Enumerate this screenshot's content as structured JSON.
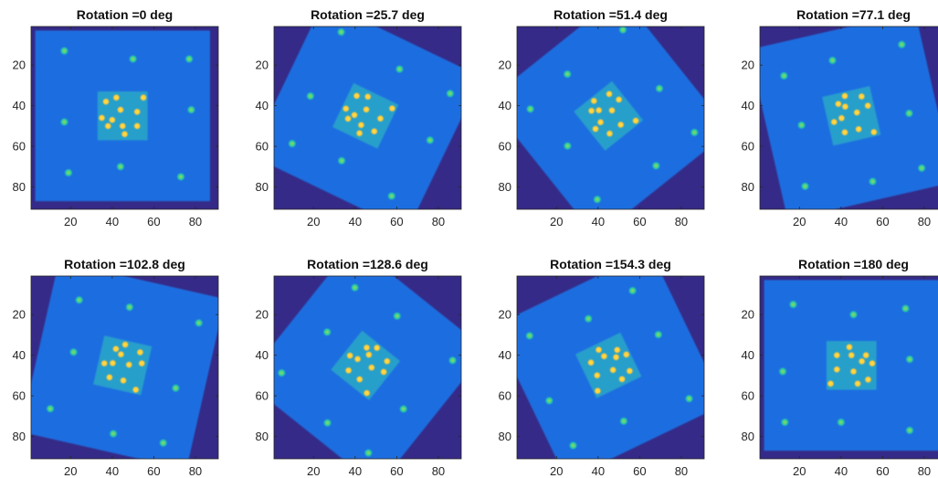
{
  "chart_data": [
    {
      "type": "heatmap",
      "title": "Rotation =0 deg",
      "rotation_deg": 0,
      "colormap": "parula",
      "xlim": [
        1,
        91
      ],
      "ylim": [
        1,
        91
      ],
      "xticks": [
        20,
        40,
        60,
        80
      ],
      "yticks": [
        20,
        40,
        60,
        80
      ],
      "grid": false
    },
    {
      "type": "heatmap",
      "title": "Rotation =25.7 deg",
      "rotation_deg": 25.7,
      "colormap": "parula",
      "xlim": [
        1,
        91
      ],
      "ylim": [
        1,
        91
      ],
      "xticks": [
        20,
        40,
        60,
        80
      ],
      "yticks": [
        20,
        40,
        60,
        80
      ],
      "grid": false
    },
    {
      "type": "heatmap",
      "title": "Rotation =51.4 deg",
      "rotation_deg": 51.4,
      "colormap": "parula",
      "xlim": [
        1,
        91
      ],
      "ylim": [
        1,
        91
      ],
      "xticks": [
        20,
        40,
        60,
        80
      ],
      "yticks": [
        20,
        40,
        60,
        80
      ],
      "grid": false
    },
    {
      "type": "heatmap",
      "title": "Rotation =77.1 deg",
      "rotation_deg": 77.1,
      "colormap": "parula",
      "xlim": [
        1,
        91
      ],
      "ylim": [
        1,
        91
      ],
      "xticks": [
        20,
        40,
        60,
        80
      ],
      "yticks": [
        20,
        40,
        60,
        80
      ],
      "grid": false
    },
    {
      "type": "heatmap",
      "title": "Rotation =102.8 deg",
      "rotation_deg": 102.8,
      "colormap": "parula",
      "xlim": [
        1,
        91
      ],
      "ylim": [
        1,
        91
      ],
      "xticks": [
        20,
        40,
        60,
        80
      ],
      "yticks": [
        20,
        40,
        60,
        80
      ],
      "grid": false
    },
    {
      "type": "heatmap",
      "title": "Rotation =128.6 deg",
      "rotation_deg": 128.6,
      "colormap": "parula",
      "xlim": [
        1,
        91
      ],
      "ylim": [
        1,
        91
      ],
      "xticks": [
        20,
        40,
        60,
        80
      ],
      "yticks": [
        20,
        40,
        60,
        80
      ],
      "grid": false
    },
    {
      "type": "heatmap",
      "title": "Rotation =154.3 deg",
      "rotation_deg": 154.3,
      "colormap": "parula",
      "xlim": [
        1,
        91
      ],
      "ylim": [
        1,
        91
      ],
      "xticks": [
        20,
        40,
        60,
        80
      ],
      "yticks": [
        20,
        40,
        60,
        80
      ],
      "grid": false
    },
    {
      "type": "heatmap",
      "title": "Rotation =180 deg",
      "rotation_deg": 180,
      "colormap": "parula",
      "xlim": [
        1,
        91
      ],
      "ylim": [
        1,
        91
      ],
      "xticks": [
        20,
        40,
        60,
        80
      ],
      "yticks": [
        20,
        40,
        60,
        80
      ],
      "grid": false
    }
  ],
  "image_model": {
    "square_center": [
      45,
      45
    ],
    "square_half_size": 42,
    "inner_square_half_size": 12,
    "outer_dots": [
      [
        17,
        13
      ],
      [
        77,
        17
      ],
      [
        19,
        73
      ],
      [
        73,
        75
      ],
      [
        50,
        17
      ],
      [
        78,
        42
      ],
      [
        17,
        48
      ],
      [
        44,
        70
      ]
    ],
    "inner_dots": [
      [
        42,
        36
      ],
      [
        37,
        38
      ],
      [
        44,
        42
      ],
      [
        35,
        46
      ],
      [
        40,
        47
      ],
      [
        45,
        50
      ],
      [
        52,
        43
      ],
      [
        52,
        50
      ],
      [
        46,
        54
      ],
      [
        38,
        50
      ],
      [
        55,
        36
      ]
    ]
  },
  "colors": {
    "background": "#352a87",
    "plate": "#1f6ee0",
    "inner": "#2aa8c8",
    "dot_outer": "#27c7a8",
    "dot_inner": "#ffc83a",
    "axes": "#262626"
  }
}
